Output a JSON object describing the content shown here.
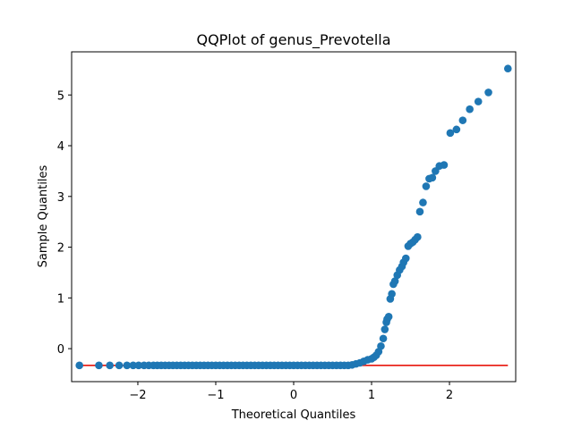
{
  "chart_data": {
    "type": "scatter",
    "title": "QQPlot of genus_Prevotella",
    "xlabel": "Theoretical Quantiles",
    "ylabel": "Sample Quantiles",
    "xlim": [
      -2.85,
      2.85
    ],
    "ylim": [
      -0.65,
      5.85
    ],
    "xticks": [
      -2,
      -1,
      0,
      1,
      2
    ],
    "yticks": [
      0,
      1,
      2,
      3,
      4,
      5
    ],
    "grid": false,
    "marker_color": "#1f77b4",
    "line_color": "#e8160c",
    "reference_line": {
      "x": [
        -2.75,
        2.75
      ],
      "y": [
        -0.33,
        -0.33
      ]
    },
    "series": [
      {
        "x": [
          -2.75,
          -2.5,
          -2.36,
          -2.24,
          -2.14,
          -2.06,
          -1.99,
          -1.92,
          -1.86,
          -1.8,
          -1.75,
          -1.7,
          -1.65,
          -1.6,
          -1.55,
          -1.5,
          -1.45,
          -1.4,
          -1.35,
          -1.3,
          -1.25,
          -1.2,
          -1.15,
          -1.1,
          -1.05,
          -1.0,
          -0.95,
          -0.9,
          -0.85,
          -0.8,
          -0.75,
          -0.7,
          -0.65,
          -0.6,
          -0.55,
          -0.5,
          -0.45,
          -0.4,
          -0.35,
          -0.3,
          -0.25,
          -0.2,
          -0.15,
          -0.1,
          -0.05,
          0.0,
          0.05,
          0.1,
          0.15,
          0.2,
          0.25,
          0.3,
          0.35,
          0.4,
          0.45,
          0.5,
          0.55,
          0.6,
          0.65,
          0.7,
          0.75,
          0.8,
          0.85,
          0.9,
          0.95,
          1.0,
          1.03,
          1.06,
          1.09,
          1.12,
          1.15,
          1.17,
          1.19,
          1.2,
          1.22,
          1.24,
          1.26,
          1.28,
          1.3,
          1.33,
          1.36,
          1.39,
          1.41,
          1.44,
          1.47,
          1.5,
          1.53,
          1.56,
          1.59,
          1.62,
          1.66,
          1.7,
          1.74,
          1.78,
          1.82,
          1.87,
          1.93,
          2.01,
          2.09,
          2.17,
          2.26,
          2.37,
          2.5,
          2.75
        ],
        "y": [
          -0.33,
          -0.33,
          -0.33,
          -0.33,
          -0.33,
          -0.33,
          -0.33,
          -0.33,
          -0.33,
          -0.33,
          -0.33,
          -0.33,
          -0.33,
          -0.33,
          -0.33,
          -0.33,
          -0.33,
          -0.33,
          -0.33,
          -0.33,
          -0.33,
          -0.33,
          -0.33,
          -0.33,
          -0.33,
          -0.33,
          -0.33,
          -0.33,
          -0.33,
          -0.33,
          -0.33,
          -0.33,
          -0.33,
          -0.33,
          -0.33,
          -0.33,
          -0.33,
          -0.33,
          -0.33,
          -0.33,
          -0.33,
          -0.33,
          -0.33,
          -0.33,
          -0.33,
          -0.33,
          -0.33,
          -0.33,
          -0.33,
          -0.33,
          -0.33,
          -0.33,
          -0.33,
          -0.33,
          -0.33,
          -0.33,
          -0.33,
          -0.33,
          -0.33,
          -0.33,
          -0.32,
          -0.3,
          -0.28,
          -0.25,
          -0.22,
          -0.2,
          -0.17,
          -0.13,
          -0.06,
          0.05,
          0.2,
          0.38,
          0.52,
          0.58,
          0.63,
          0.98,
          1.08,
          1.27,
          1.33,
          1.45,
          1.55,
          1.62,
          1.7,
          1.78,
          2.02,
          2.07,
          2.1,
          2.15,
          2.2,
          2.7,
          2.88,
          3.2,
          3.35,
          3.37,
          3.5,
          3.6,
          3.62,
          4.25,
          4.32,
          4.5,
          4.72,
          4.87,
          5.05,
          5.52
        ]
      }
    ]
  }
}
